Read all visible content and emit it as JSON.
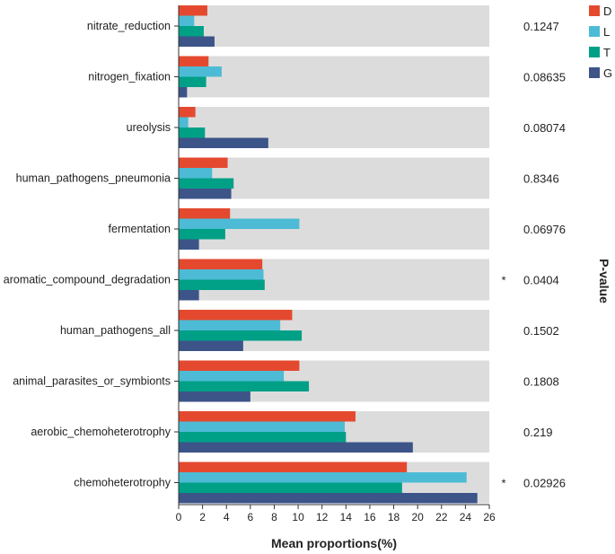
{
  "chart_data": {
    "type": "bar",
    "orientation": "horizontal",
    "categories": [
      "nitrate_reduction",
      "nitrogen_fixation",
      "ureolysis",
      "human_pathogens_pneumonia",
      "fermentation",
      "aromatic_compound_degradation",
      "human_pathogens_all",
      "animal_parasites_or_symbionts",
      "aerobic_chemoheterotrophy",
      "chemoheterotrophy"
    ],
    "series": [
      {
        "name": "D",
        "color": "#e4492f",
        "values": [
          2.4,
          2.5,
          1.4,
          4.1,
          4.3,
          7.0,
          9.5,
          10.1,
          14.8,
          19.1
        ]
      },
      {
        "name": "L",
        "color": "#4dbbd5",
        "values": [
          1.3,
          3.6,
          0.8,
          2.8,
          10.1,
          7.1,
          8.5,
          8.8,
          13.9,
          24.1
        ]
      },
      {
        "name": "T",
        "color": "#00a087",
        "values": [
          2.1,
          2.3,
          2.2,
          4.6,
          3.9,
          7.2,
          10.3,
          10.9,
          14.0,
          18.7
        ]
      },
      {
        "name": "G",
        "color": "#3c5488",
        "values": [
          3.0,
          0.7,
          7.5,
          4.4,
          1.7,
          1.7,
          5.4,
          6.0,
          19.6,
          25.0
        ]
      }
    ],
    "p_values": [
      "0.1247",
      "0.08635",
      "0.08074",
      "0.8346",
      "0.06976",
      "0.0404",
      "0.1502",
      "0.1808",
      "0.219",
      "0.02926"
    ],
    "significance": [
      "",
      "",
      "",
      "",
      "",
      "*",
      "",
      "",
      "",
      "*"
    ],
    "xlabel": "Mean proportions(%)",
    "p_label": "P-value",
    "xlim": [
      0,
      26
    ],
    "xticks": [
      "0",
      "2",
      "4",
      "6",
      "8",
      "10",
      "12",
      "14",
      "16",
      "18",
      "20",
      "22",
      "24",
      "26"
    ],
    "legend_position": "top-right",
    "band_color": "#dcdcdc"
  }
}
